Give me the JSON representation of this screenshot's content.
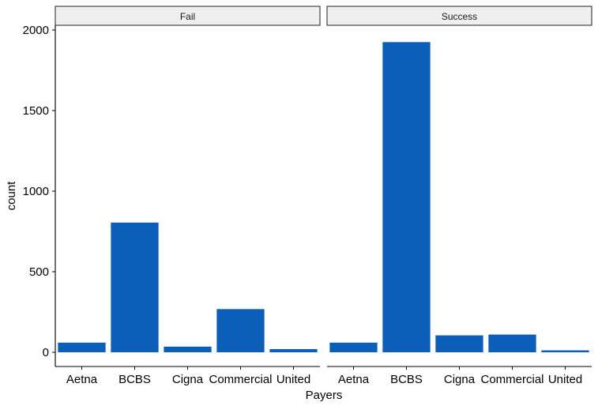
{
  "chart_data": {
    "type": "bar",
    "xlabel": "Payers",
    "ylabel": "count",
    "ylim": [
      0,
      2000
    ],
    "yticks": [
      0,
      500,
      1000,
      1500,
      2000
    ],
    "categories": [
      "Aetna",
      "BCBS",
      "Cigna",
      "Commercial",
      "United"
    ],
    "bar_color": "#0b5fb8",
    "facets": [
      {
        "label": "Fail",
        "values": [
          60,
          805,
          35,
          268,
          20
        ]
      },
      {
        "label": "Success",
        "values": [
          60,
          1925,
          105,
          110,
          12
        ]
      }
    ],
    "grid": false,
    "legend": "none"
  }
}
